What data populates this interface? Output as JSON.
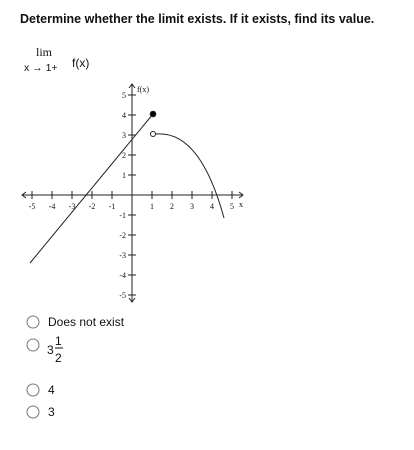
{
  "question": "Determine whether the limit exists. If it exists, find its value.",
  "limit": {
    "lim": "lim",
    "approach": "x → 1+",
    "func": "f(x)"
  },
  "graph": {
    "y_label": "f(x)",
    "x_label": "x",
    "x_ticks": [
      "-5",
      "-4",
      "-3",
      "-2",
      "-1",
      "1",
      "2",
      "3",
      "4",
      "5"
    ],
    "y_ticks": [
      "5",
      "4",
      "3",
      "2",
      "1",
      "-1",
      "-2",
      "-3",
      "-4",
      "-5"
    ]
  },
  "options": [
    {
      "text": "Does not exist"
    },
    {
      "whole": "3",
      "numerator": "1",
      "denominator": "2"
    },
    {
      "text": "4"
    },
    {
      "text": "3"
    }
  ]
}
